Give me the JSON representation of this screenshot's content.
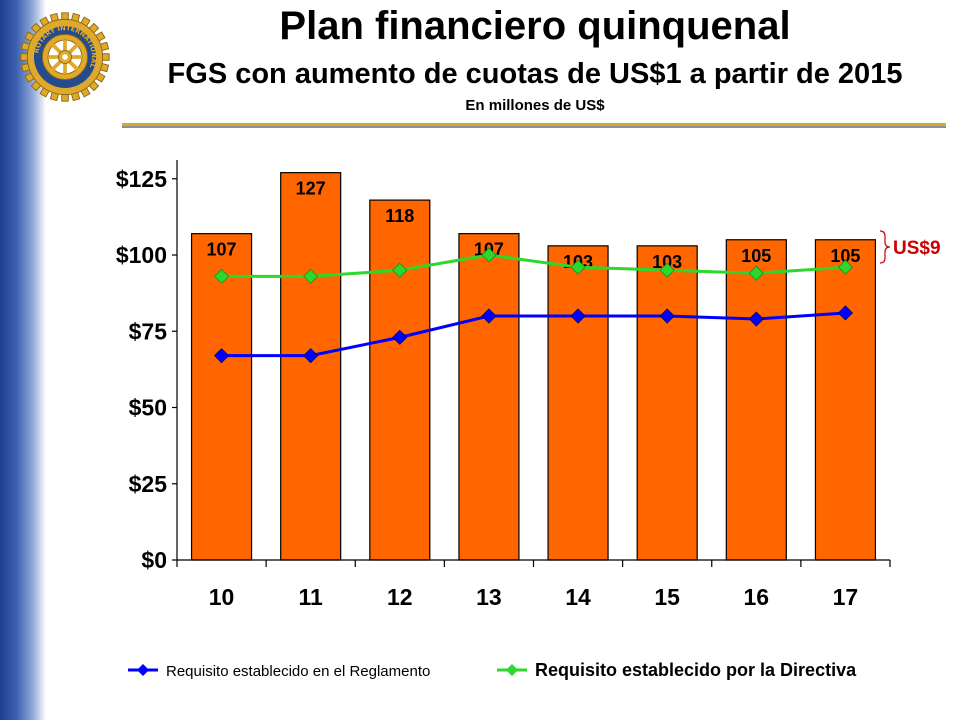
{
  "header": {
    "title": "Plan financiero quinquenal",
    "subtitle": "FGS con aumento de cuotas de US$1 a partir de 2015",
    "unit": "En millones de US$"
  },
  "logo": {
    "icon": "rotary-wheel-icon",
    "ring_text": "ROTARY INTERNATIONAL"
  },
  "colors": {
    "bar": "#ff6600",
    "series_blue": "#0000ff",
    "series_green": "#2cd82c",
    "annotation": "#cc0000",
    "side_bar": "#1f3f8e",
    "rule": "#d7a928"
  },
  "chart_data": {
    "type": "bar",
    "categories": [
      "10",
      "11",
      "12",
      "13",
      "14",
      "15",
      "16",
      "17"
    ],
    "values": [
      107,
      127,
      118,
      107,
      103,
      103,
      105,
      105
    ],
    "data_labels": [
      "107",
      "127",
      "118",
      "107",
      "103",
      "103",
      "105",
      "105"
    ],
    "series": [
      {
        "name": "Requisito establecido en el Reglamento",
        "type": "line",
        "values": [
          67,
          67,
          73,
          80,
          80,
          80,
          79,
          81
        ]
      },
      {
        "name": "Requisito establecido por la Directiva",
        "type": "line",
        "values": [
          93,
          93,
          95,
          100,
          96,
          95,
          94,
          96
        ]
      }
    ],
    "ylim": [
      0,
      125
    ],
    "yticks": [
      0,
      25,
      50,
      75,
      100,
      125
    ],
    "ytick_labels": [
      "$0",
      "$25",
      "$50",
      "$75",
      "$100",
      "$125"
    ],
    "annotation": "US$9",
    "grid": false,
    "legend_position": "bottom"
  }
}
